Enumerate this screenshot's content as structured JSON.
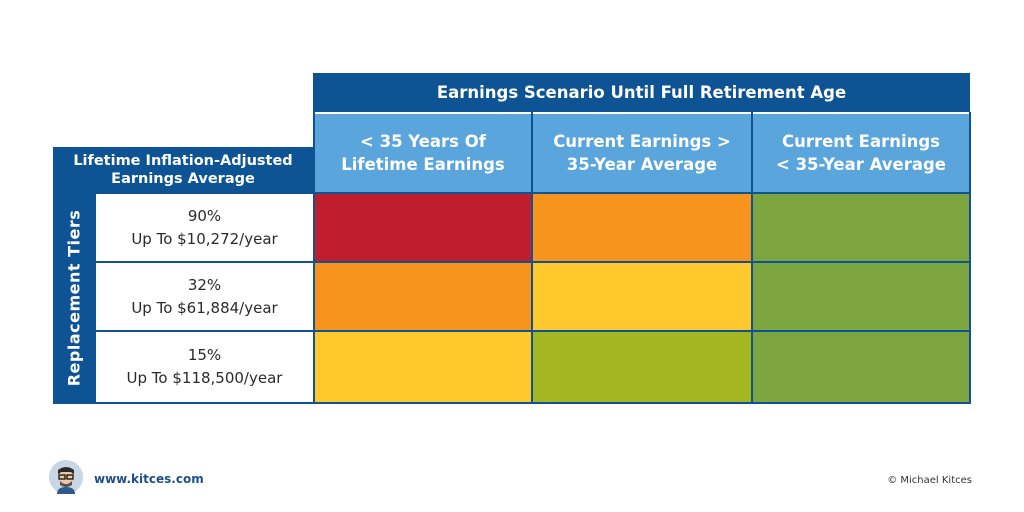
{
  "header": {
    "scenario_title": "Earnings Scenario Until Full Retirement Age",
    "left_title_line1": "Lifetime Inflation-Adjusted",
    "left_title_line2": "Earnings Average",
    "side_label": "Replacement Tiers"
  },
  "columns": [
    {
      "line1": "< 35 Years Of",
      "line2": "Lifetime Earnings"
    },
    {
      "line1": "Current Earnings >",
      "line2": "35-Year Average"
    },
    {
      "line1": "Current Earnings",
      "line2": "< 35-Year Average"
    }
  ],
  "rows": [
    {
      "pct": "90%",
      "limit": "Up To $10,272/year",
      "colors": [
        "#be1e2d",
        "#f7941d",
        "#7ca53f"
      ]
    },
    {
      "pct": "32%",
      "limit": "Up To $61,884/year",
      "colors": [
        "#f7941d",
        "#ffc82c",
        "#7ca53f"
      ]
    },
    {
      "pct": "15%",
      "limit": "Up To $118,500/year",
      "colors": [
        "#ffc82c",
        "#a4b721",
        "#7ca53f"
      ]
    }
  ],
  "footer": {
    "website": "www.kitces.com",
    "copyright": "© Michael Kitces",
    "avatar_icon": "cartoon-avatar-icon"
  }
}
